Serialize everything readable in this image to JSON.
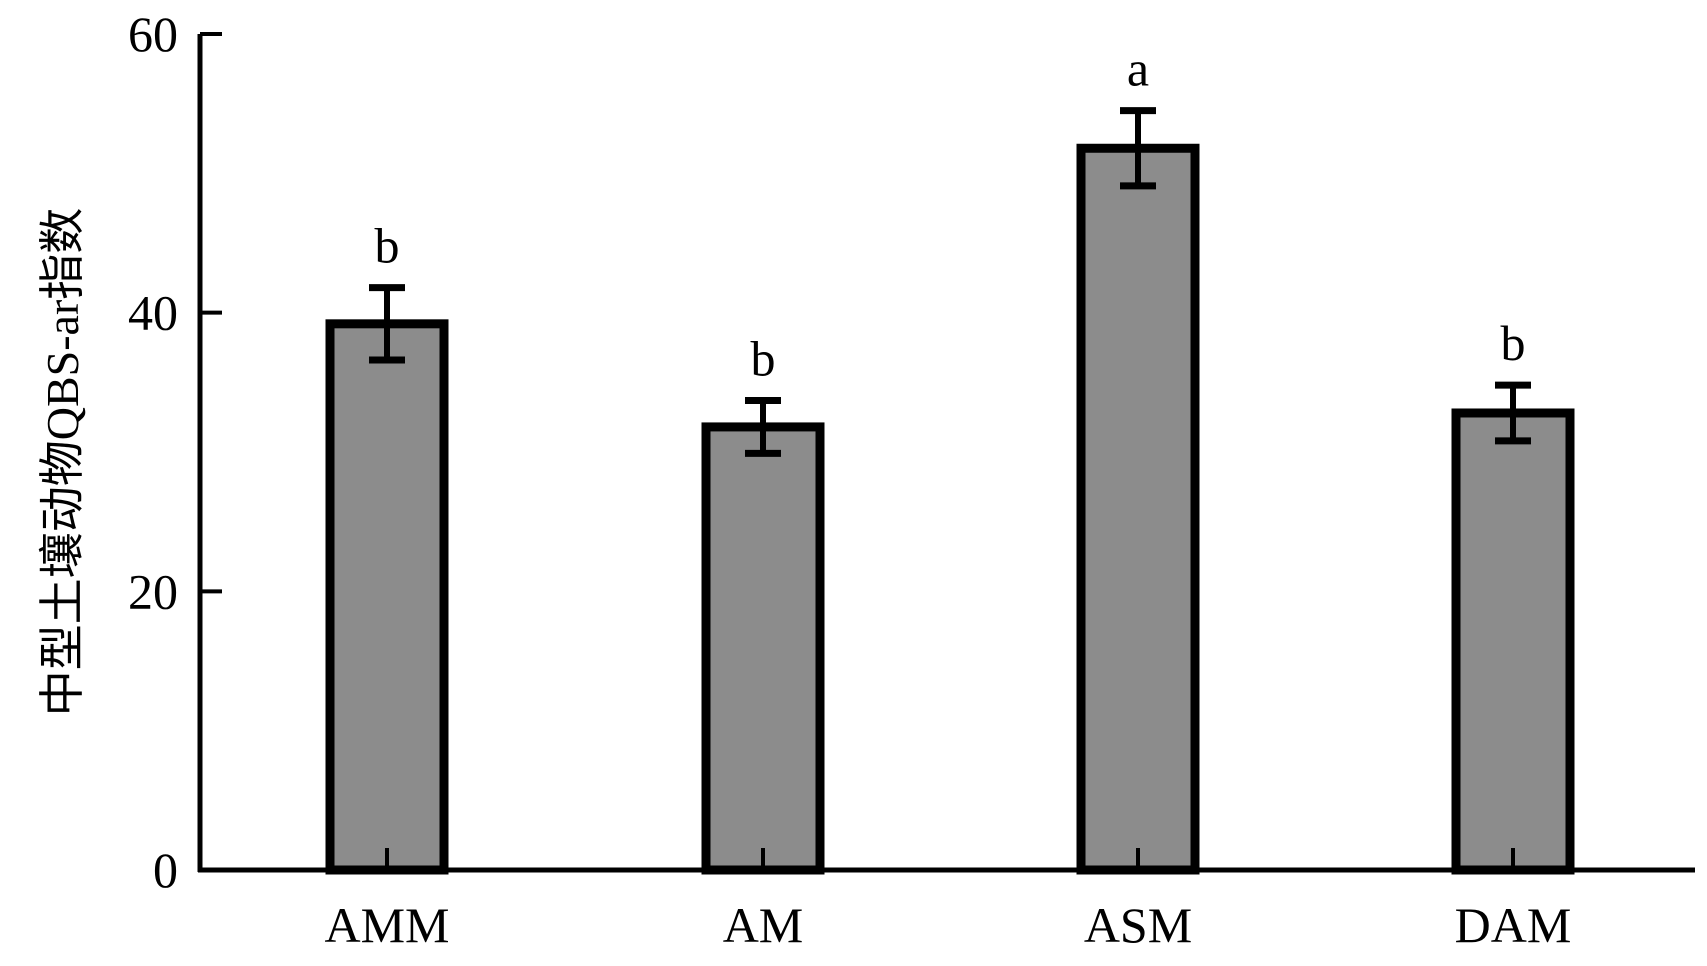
{
  "chart_data": {
    "type": "bar",
    "title": "",
    "xlabel": "",
    "ylabel": "中型土壤动物QBS-ar指数",
    "categories": [
      "AMM",
      "AM",
      "ASM",
      "DAM"
    ],
    "values": [
      39.2,
      31.8,
      51.8,
      32.8
    ],
    "error": [
      2.6,
      1.9,
      2.7,
      2.0
    ],
    "significance_letters": [
      "b",
      "b",
      "a",
      "b"
    ],
    "ylim": [
      0,
      60
    ],
    "yticks": [
      0,
      20,
      40,
      60
    ],
    "ytick_labels": [
      "0",
      "20",
      "40",
      "60"
    ],
    "grid": false,
    "legend": "none",
    "colors": {
      "bar_fill": "#8c8c8c",
      "bar_stroke": "#000000",
      "axis": "#000000"
    }
  }
}
